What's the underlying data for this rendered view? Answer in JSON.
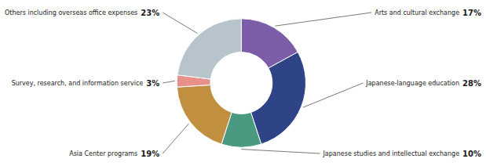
{
  "chart_data": {
    "type": "pie",
    "categories": [
      "Arts and cultural exchange",
      "Japanese-language education",
      "Japanese studies and intellectual exchange",
      "Asia Center programs",
      "Survey, research, and information service",
      "Others including overseas office expenses"
    ],
    "values": [
      17,
      28,
      10,
      19,
      3,
      23
    ],
    "value_labels": [
      "17%",
      "28%",
      "10%",
      "19%",
      "3%",
      "23%"
    ],
    "colors": [
      "#7b5ea7",
      "#2e4487",
      "#4a9a82",
      "#c09040",
      "#e8908a",
      "#b8c4cc"
    ],
    "data_labels": true
  }
}
